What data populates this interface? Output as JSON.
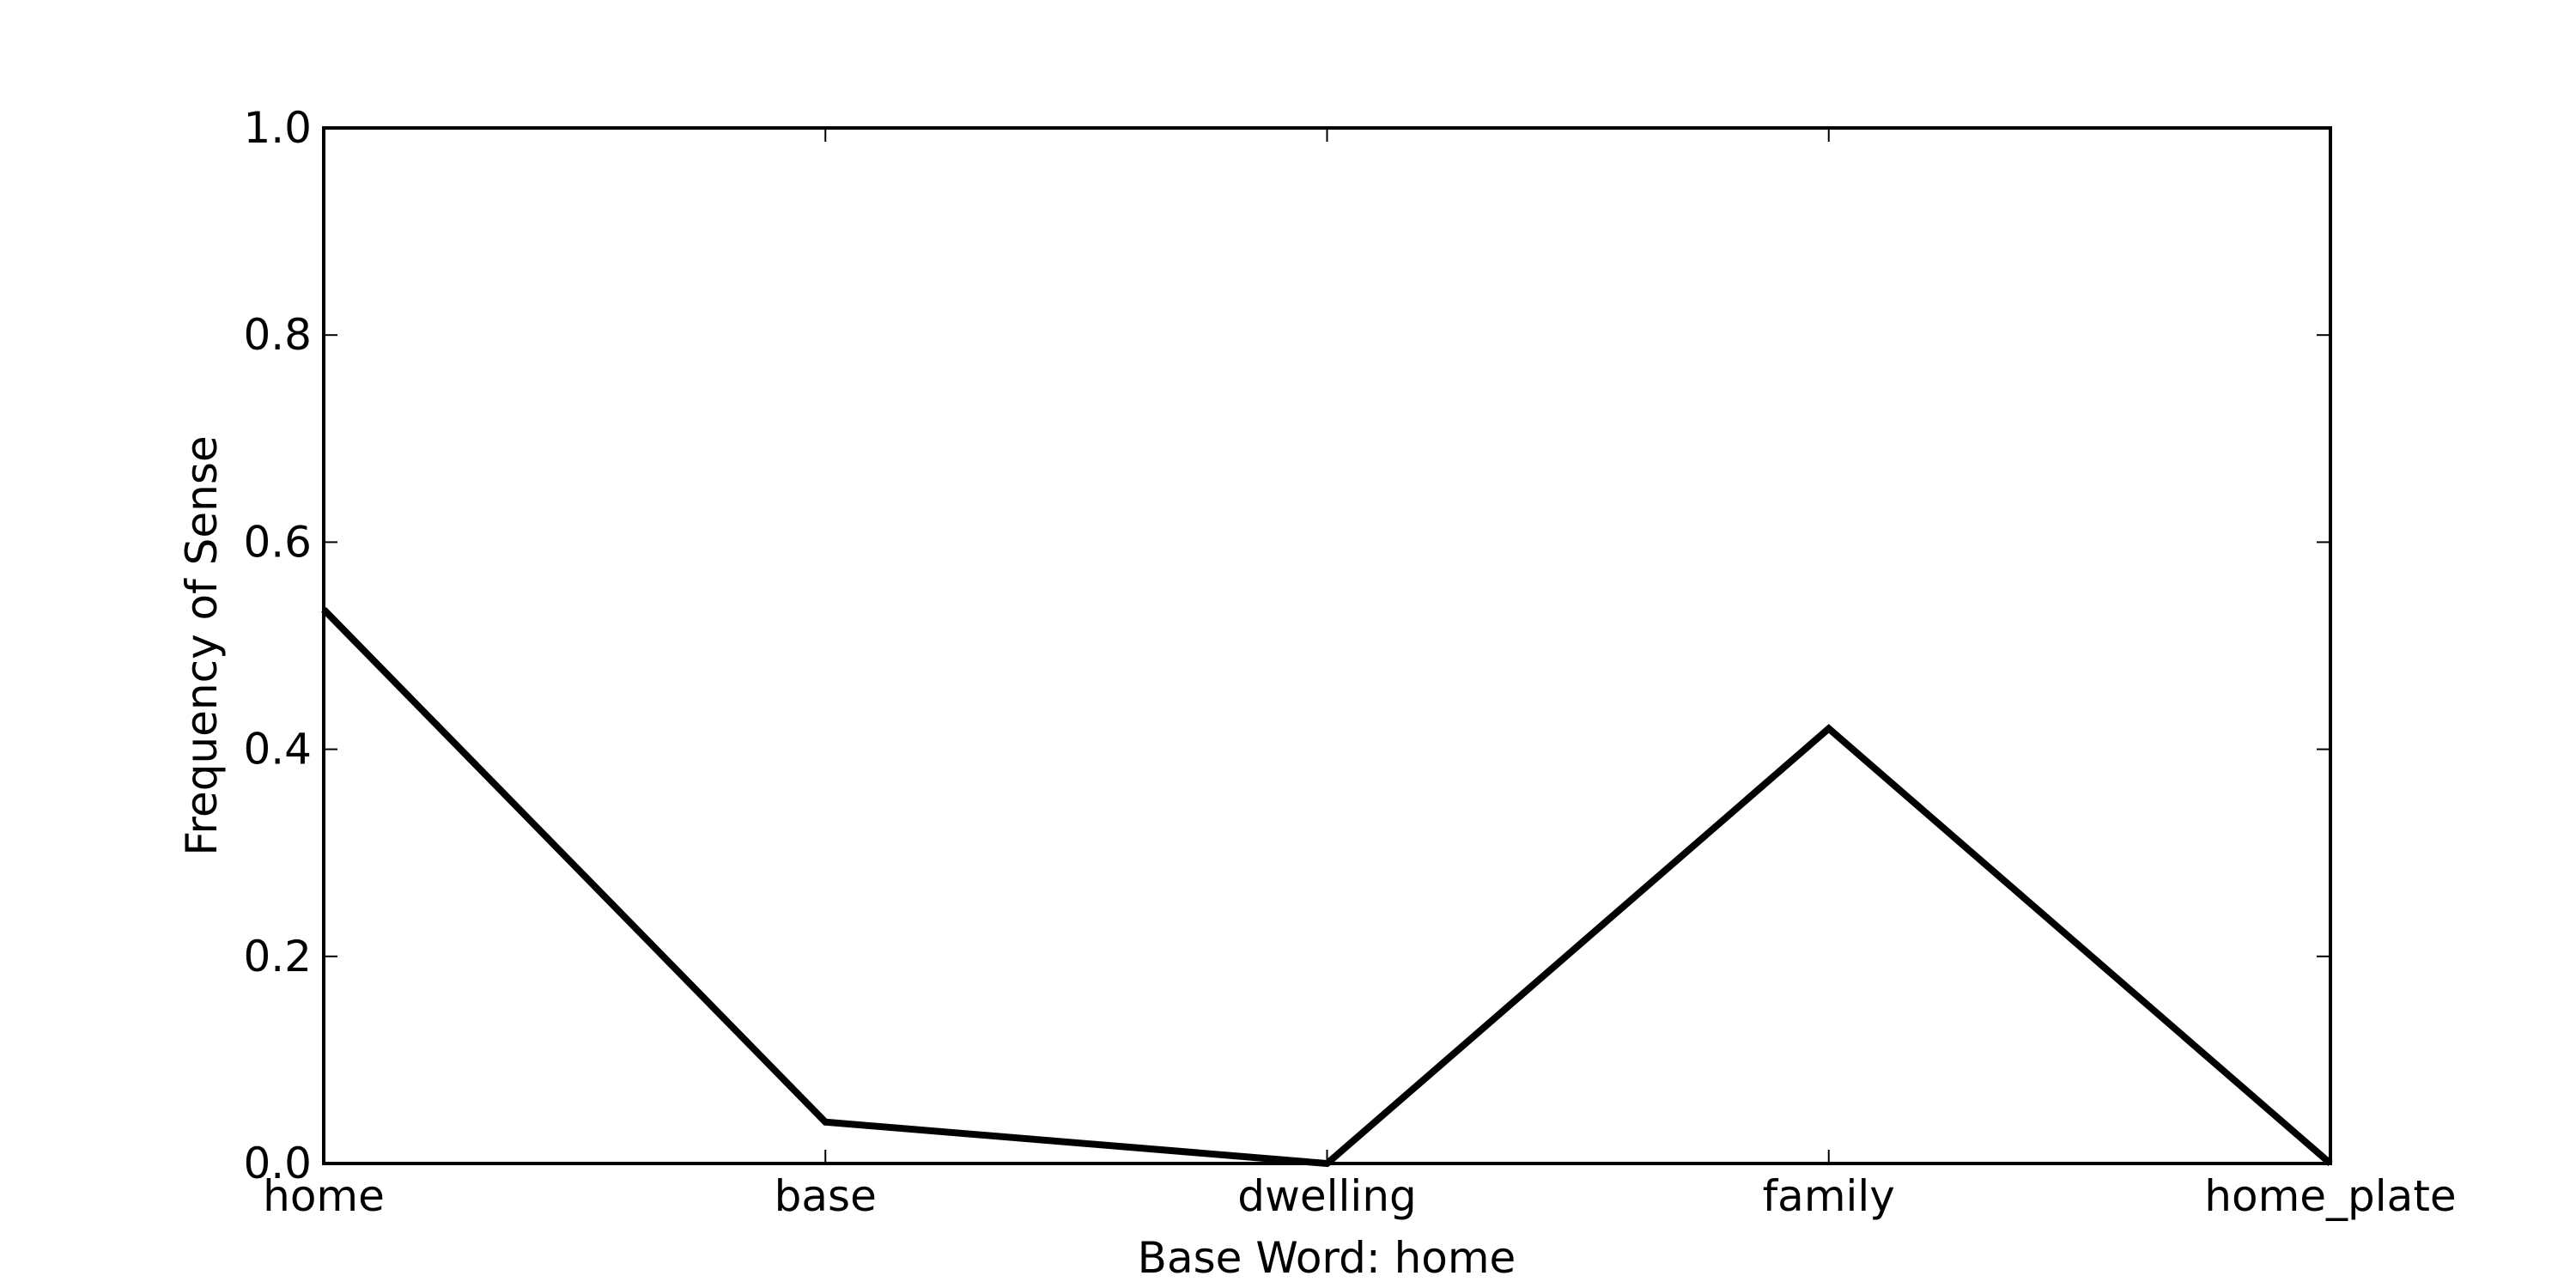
{
  "chart_data": {
    "type": "line",
    "title": "",
    "xlabel": "Base Word: home",
    "ylabel": "Frequency of Sense",
    "categories": [
      "home",
      "base",
      "dwelling",
      "family",
      "home_plate"
    ],
    "series": [
      {
        "values": [
          0.535,
          0.04,
          0.0,
          0.42,
          0.0
        ]
      }
    ],
    "ylim": [
      0.0,
      1.0
    ],
    "yticks": [
      "0.0",
      "0.2",
      "0.4",
      "0.6",
      "0.8",
      "1.0"
    ],
    "grid": false,
    "line_color": "#000000"
  }
}
